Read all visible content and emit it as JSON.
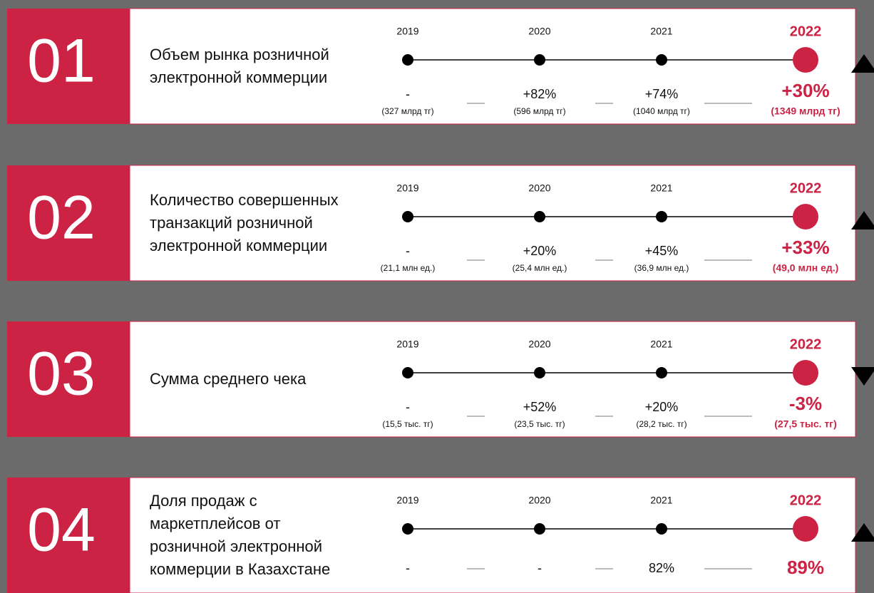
{
  "rows": [
    {
      "number": "01",
      "title": [
        "Объем рынка розничной",
        "электронной коммерции"
      ],
      "years": [
        "2019",
        "2020",
        "2021",
        "2022"
      ],
      "values": [
        "-",
        "+82%",
        "+74%",
        "+30%"
      ],
      "amounts": [
        "(327 млрд тг)",
        "(596 млрд тг)",
        "(1040 млрд тг)",
        "(1349 млрд тг)"
      ]
    },
    {
      "number": "02",
      "title": [
        "Количество совершенных",
        "транзакций розничной",
        "электронной коммерции"
      ],
      "years": [
        "2019",
        "2020",
        "2021",
        "2022"
      ],
      "values": [
        "-",
        "+20%",
        "+45%",
        "+33%"
      ],
      "amounts": [
        "(21,1 млн ед.)",
        "(25,4 млн ед.)",
        "(36,9 млн ед.)",
        "(49,0 млн ед.)"
      ]
    },
    {
      "number": "03",
      "title": [
        "Сумма среднего чека"
      ],
      "years": [
        "2019",
        "2020",
        "2021",
        "2022"
      ],
      "values": [
        "-",
        "+52%",
        "+20%",
        "-3%"
      ],
      "amounts": [
        "(15,5 тыс. тг)",
        "(23,5 тыс. тг)",
        "(28,2 тыс. тг)",
        "(27,5 тыс. тг)"
      ]
    },
    {
      "number": "04",
      "title": [
        "Доля продаж с",
        "маркетплейсов от",
        "розничной электронной",
        "коммерции в Казахстане"
      ],
      "years": [
        "2019",
        "2020",
        "2021",
        "2022"
      ],
      "values": [
        "-",
        "-",
        "82%",
        "89%"
      ]
    }
  ]
}
